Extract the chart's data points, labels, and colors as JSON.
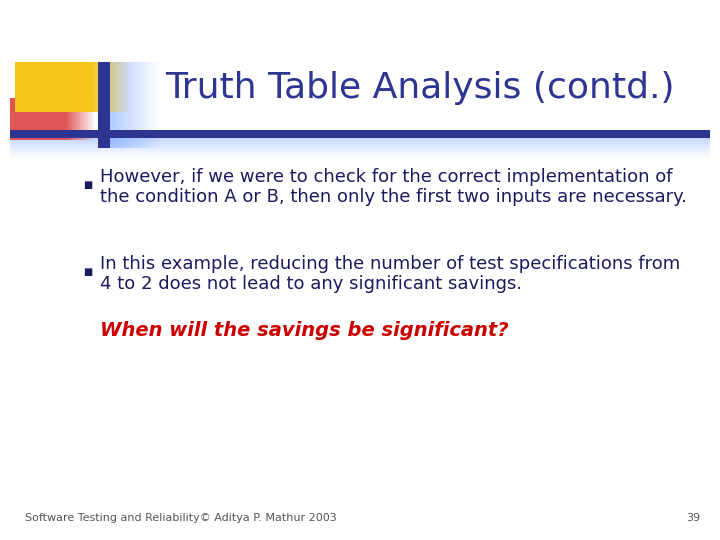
{
  "title": "Truth Table Analysis (contd.)",
  "title_color": "#2E3491",
  "title_fontsize": 26,
  "background_color": "#FFFFFF",
  "bullet1_line1": "However, if we were to check for the correct implementation of",
  "bullet1_line2": "the condition A or B, then only the first two inputs are necessary.",
  "bullet2_line1": "In this example, reducing the number of test specifications from",
  "bullet2_line2": "4 to 2 does not lead to any significant savings.",
  "italic_text": "When will the savings be significant?",
  "italic_color": "#CC0000",
  "text_color": "#1A1A5E",
  "footer_text": "Software Testing and Reliability© Aditya P. Mathur 2003",
  "footer_page": "39",
  "footer_color": "#555555",
  "footer_fontsize": 8,
  "text_fontsize": 13,
  "italic_fontsize": 14,
  "yellow_color": "#F5C518",
  "red_color": "#E05555",
  "blue_color": "#2E3491",
  "light_blue_color": "#6699FF"
}
